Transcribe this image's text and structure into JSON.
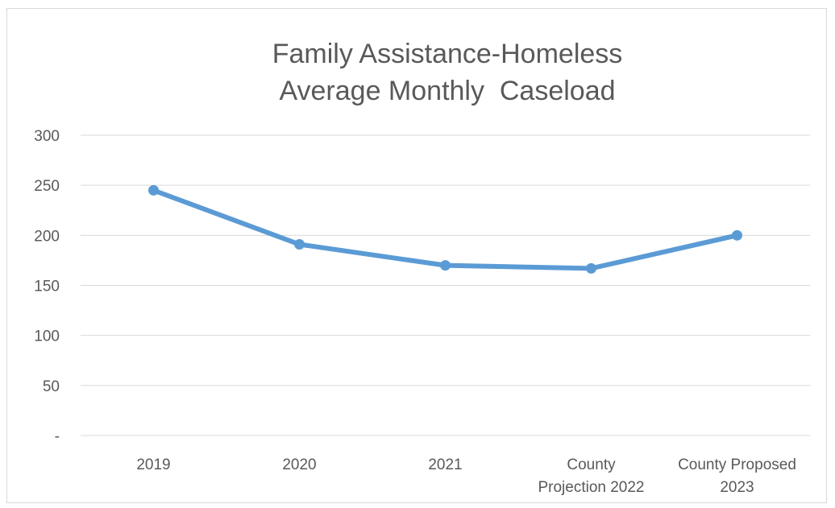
{
  "chart_data": {
    "type": "line",
    "title_lines": [
      "Family Assistance-Homeless",
      "Average Monthly  Caseload"
    ],
    "categories": [
      [
        "2019"
      ],
      [
        "2020"
      ],
      [
        "2021"
      ],
      [
        "County",
        "Projection 2022"
      ],
      [
        "County Proposed",
        "2023"
      ]
    ],
    "series": [
      {
        "values": [
          245,
          191,
          170,
          167,
          200
        ],
        "color": "#5b9bd5"
      }
    ],
    "y_ticks": [
      {
        "value": 0,
        "label": "-"
      },
      {
        "value": 50,
        "label": "50"
      },
      {
        "value": 100,
        "label": "100"
      },
      {
        "value": 150,
        "label": "150"
      },
      {
        "value": 200,
        "label": "200"
      },
      {
        "value": 250,
        "label": "250"
      },
      {
        "value": 300,
        "label": "300"
      }
    ],
    "ylim": [
      0,
      300
    ],
    "grid": true,
    "gridline_color": "#d9d9d9",
    "axis_color": "#d9d9d9"
  }
}
